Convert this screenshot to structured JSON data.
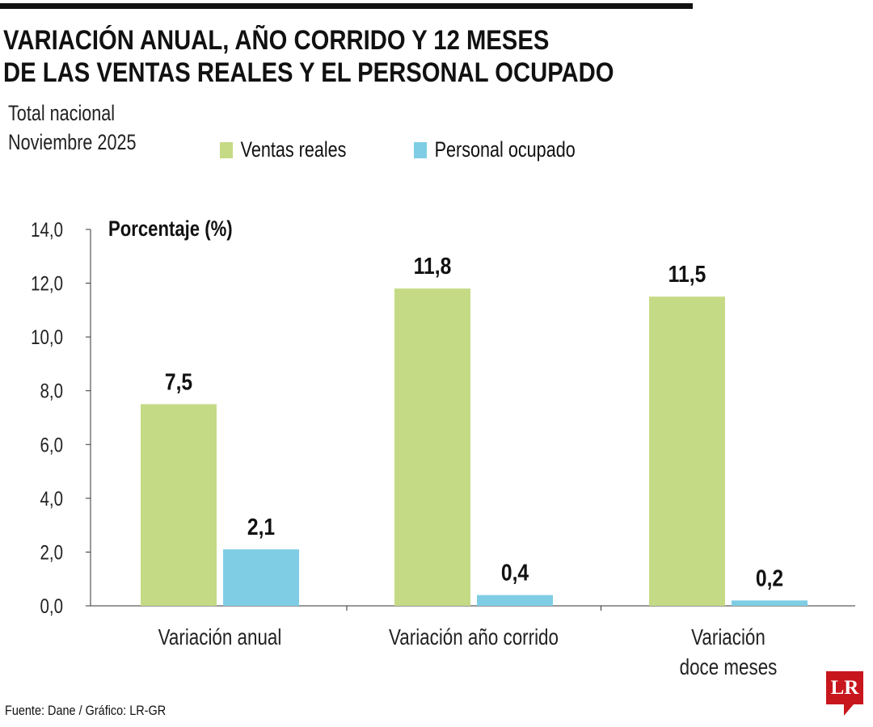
{
  "chart_data": {
    "type": "bar",
    "title": "VARIACIÓN ANUAL, AÑO CORRIDO Y 12 MESES DE LAS VENTAS REALES Y EL PERSONAL OCUPADO",
    "title_lines": [
      "VARIACIÓN ANUAL, AÑO CORRIDO Y 12 MESES",
      "DE LAS VENTAS REALES Y EL PERSONAL OCUPADO"
    ],
    "subtitle_lines": [
      "Total nacional",
      "Noviembre 2025"
    ],
    "ylabel": "Porcentaje (%)",
    "ylim": [
      0,
      14
    ],
    "yticks": [
      "0,0",
      "2,0",
      "4,0",
      "6,0",
      "8,0",
      "10,0",
      "12,0",
      "14,0"
    ],
    "categories": [
      [
        "Variación anual"
      ],
      [
        "Variación año corrido"
      ],
      [
        "Variación",
        "doce meses"
      ]
    ],
    "series": [
      {
        "name": "Ventas reales",
        "color": "#c5da85",
        "values": [
          7.5,
          11.8,
          11.5
        ],
        "labels": [
          "7,5",
          "11,8",
          "11,5"
        ]
      },
      {
        "name": "Personal ocupado",
        "color": "#7fcde4",
        "values": [
          2.1,
          0.4,
          0.2
        ],
        "labels": [
          "2,1",
          "0,4",
          "0,2"
        ]
      }
    ],
    "legend": "top",
    "grid": false
  },
  "footer": {
    "source": "Fuente: Dane / Gráfico: LR-GR",
    "logo": "LR"
  }
}
